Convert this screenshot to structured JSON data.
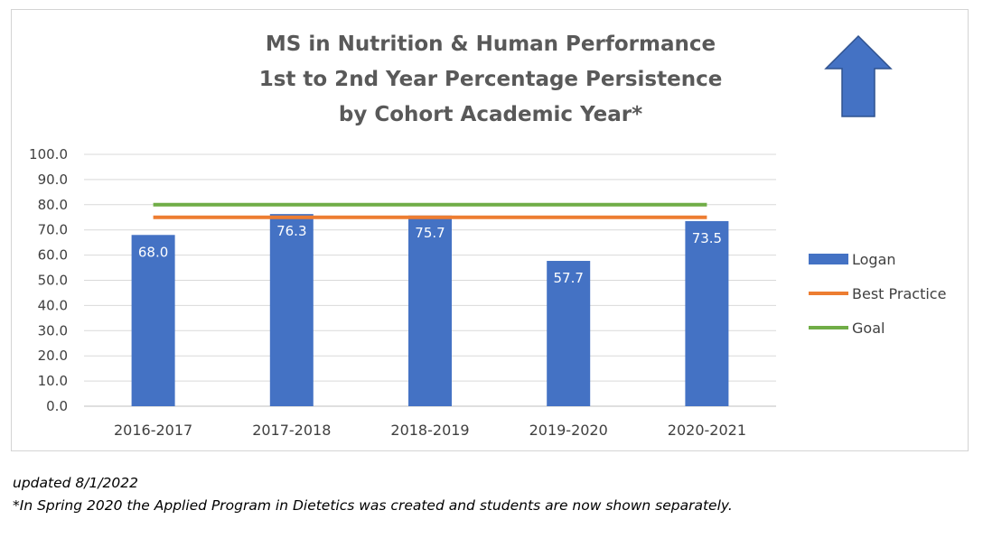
{
  "chart_data": {
    "type": "bar",
    "title_lines": [
      "MS in Nutrition & Human Performance",
      "1st to 2nd Year Percentage Persistence",
      "by Cohort Academic Year*"
    ],
    "categories": [
      "2016-2017",
      "2017-2018",
      "2018-2019",
      "2019-2020",
      "2020-2021"
    ],
    "series": [
      {
        "name": "Logan",
        "kind": "bar",
        "values": [
          68.0,
          76.3,
          75.7,
          57.7,
          73.5
        ],
        "color": "#4472C4"
      },
      {
        "name": "Best Practice",
        "kind": "line",
        "values": [
          75,
          75,
          75,
          75,
          75
        ],
        "color": "#ED7D31"
      },
      {
        "name": "Goal",
        "kind": "line",
        "values": [
          80,
          80,
          80,
          80,
          80
        ],
        "color": "#70AD47"
      }
    ],
    "data_labels": [
      "68.0",
      "76.3",
      "75.7",
      "57.7",
      "73.5"
    ],
    "y_ticks": [
      "0.0",
      "10.0",
      "20.0",
      "30.0",
      "40.0",
      "50.0",
      "60.0",
      "70.0",
      "80.0",
      "90.0",
      "100.0"
    ],
    "ylim": [
      0,
      100
    ],
    "grid": true,
    "legend_position": "right",
    "annotation_icon": "up-arrow-icon",
    "arrow_color": "#4472C4"
  },
  "footnotes": {
    "updated": "updated 8/1/2022",
    "note": "*In Spring 2020 the Applied Program in Dietetics was created and students are now shown separately."
  }
}
